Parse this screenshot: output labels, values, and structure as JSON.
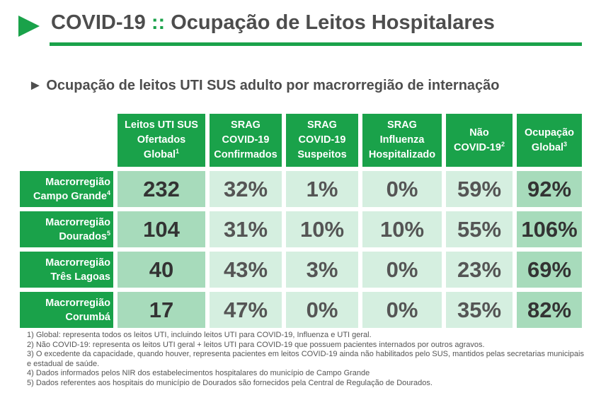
{
  "title": {
    "main": "COVID-19",
    "separator": "::",
    "rest": "Ocupação de Leitos Hospitalares"
  },
  "subtitle": "► Ocupação de leitos UTI SUS adulto por macrorregião de internação",
  "columns": [
    {
      "lines": [
        "Leitos UTI SUS",
        "Ofertados",
        "Global"
      ],
      "sup": "1"
    },
    {
      "lines": [
        "SRAG",
        "COVID-19",
        "Confirmados"
      ],
      "sup": ""
    },
    {
      "lines": [
        "SRAG",
        "COVID-19",
        "Suspeitos"
      ],
      "sup": ""
    },
    {
      "lines": [
        "SRAG",
        "Influenza",
        "Hospitalizado"
      ],
      "sup": ""
    },
    {
      "lines": [
        "Não",
        "COVID-19"
      ],
      "sup": "2"
    },
    {
      "lines": [
        "Ocupação",
        "Global"
      ],
      "sup": "3"
    }
  ],
  "rows": [
    {
      "label": [
        "Macrorregião",
        "Campo Grande"
      ],
      "sup": "4",
      "values": [
        "232",
        "32%",
        "1%",
        "0%",
        "59%",
        "92%"
      ]
    },
    {
      "label": [
        "Macrorregião",
        "Dourados"
      ],
      "sup": "5",
      "values": [
        "104",
        "31%",
        "10%",
        "10%",
        "55%",
        "106%"
      ]
    },
    {
      "label": [
        "Macrorregião",
        "Três Lagoas"
      ],
      "sup": "",
      "values": [
        "40",
        "43%",
        "3%",
        "0%",
        "23%",
        "69%"
      ]
    },
    {
      "label": [
        "Macrorregião",
        "Corumbá"
      ],
      "sup": "",
      "values": [
        "17",
        "47%",
        "0%",
        "0%",
        "35%",
        "82%"
      ]
    }
  ],
  "notes": [
    "1) Global: representa todos os leitos UTI, incluindo leitos UTI para COVID-19, Influenza e UTI geral.",
    "2) Não COVID-19: representa os leitos UTI geral + leitos UTI para COVID-19 que possuem pacientes internados por outros agravos.",
    "3) O excedente da capacidade, quando houver, representa pacientes em leitos COVID-19 ainda não habilitados pelo SUS, mantidos pelas secretarias municipais e estadual de saúde.",
    "4) Dados informados pelos NIR dos estabelecimentos hospitalares do município de Campo Grande",
    "5) Dados referentes aos hospitais do município de Dourados são fornecidos pela Central de Regulação de Dourados."
  ],
  "colors": {
    "accent": "#1aa24a",
    "cell_dark": "#a7dbbb",
    "cell_light": "#d5efe0"
  }
}
